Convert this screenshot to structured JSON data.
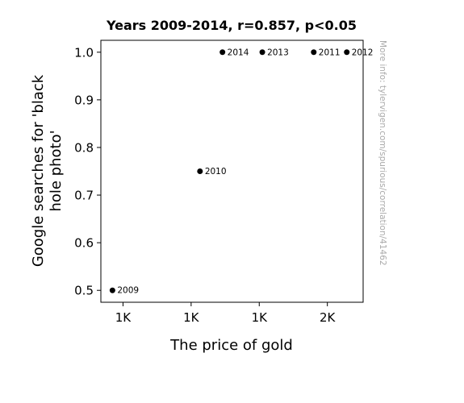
{
  "chart_data": {
    "type": "scatter",
    "title": "Years 2009-2014, r=0.857, p<0.05",
    "xlabel": "The price of gold",
    "ylabel_lines": [
      "Google searches for 'black",
      "hole photo'"
    ],
    "watermark": "More info: tylervigen.com/spurious/correlation/41462",
    "xlim": [
      950,
      1720
    ],
    "ylim": [
      0.475,
      1.025
    ],
    "x_ticks": [
      {
        "value": 1015,
        "label": "1K"
      },
      {
        "value": 1215,
        "label": "1K"
      },
      {
        "value": 1415,
        "label": "1K"
      },
      {
        "value": 1615,
        "label": "2K"
      }
    ],
    "y_ticks": [
      {
        "value": 0.5,
        "label": "0.5"
      },
      {
        "value": 0.6,
        "label": "0.6"
      },
      {
        "value": 0.7,
        "label": "0.7"
      },
      {
        "value": 0.8,
        "label": "0.8"
      },
      {
        "value": 0.9,
        "label": "0.9"
      },
      {
        "value": 1.0,
        "label": "1.0"
      }
    ],
    "points": [
      {
        "label": "2009",
        "x": 984,
        "y": 0.5
      },
      {
        "label": "2010",
        "x": 1241,
        "y": 0.75
      },
      {
        "label": "2011",
        "x": 1575,
        "y": 1.0
      },
      {
        "label": "2012",
        "x": 1672,
        "y": 1.0
      },
      {
        "label": "2013",
        "x": 1424,
        "y": 1.0
      },
      {
        "label": "2014",
        "x": 1307,
        "y": 1.0
      }
    ],
    "grid": false,
    "colors": {
      "point": "#000000",
      "watermark": "#aaaaaa",
      "axes": "#000000"
    }
  }
}
